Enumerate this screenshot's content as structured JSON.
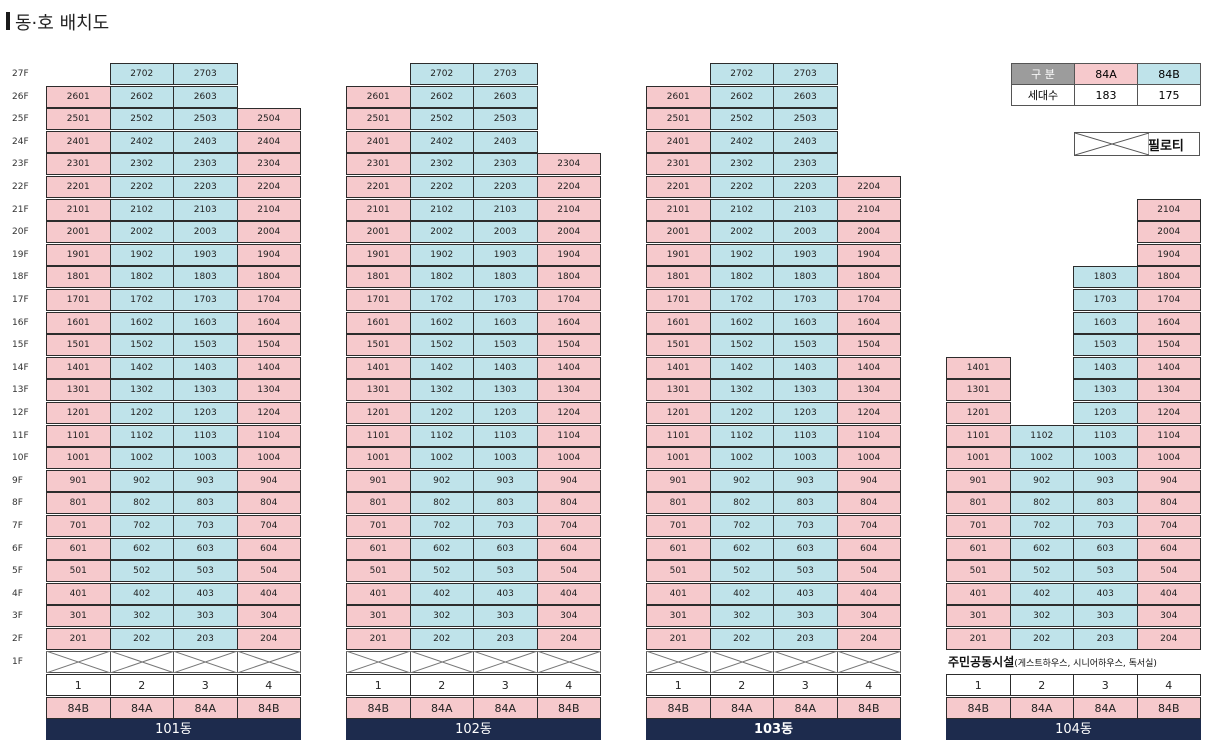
{
  "title": "동·호 배치도",
  "floors": [
    "27F",
    "26F",
    "25F",
    "24F",
    "23F",
    "22F",
    "21F",
    "20F",
    "19F",
    "18F",
    "17F",
    "16F",
    "15F",
    "14F",
    "13F",
    "12F",
    "11F",
    "10F",
    "9F",
    "8F",
    "7F",
    "6F",
    "5F",
    "4F",
    "3F",
    "2F",
    "1F"
  ],
  "legend": {
    "header_label": "구 분",
    "type_a": "84A",
    "type_b": "84B",
    "count_label": "세대수",
    "count_a": "183",
    "count_b": "175",
    "piloti_label": "필로티"
  },
  "buildings": [
    {
      "name": "101동",
      "lines": [
        "1",
        "2",
        "3",
        "4"
      ],
      "types": [
        "84B",
        "84A",
        "84A",
        "84B"
      ],
      "top_floors": [
        26,
        27,
        27,
        25
      ],
      "bottom_floors": [
        2,
        2,
        2,
        2
      ],
      "facility": ""
    },
    {
      "name": "102동",
      "lines": [
        "1",
        "2",
        "3",
        "4"
      ],
      "types": [
        "84B",
        "84A",
        "84A",
        "84B"
      ],
      "top_floors": [
        26,
        27,
        27,
        23
      ],
      "bottom_floors": [
        2,
        2,
        2,
        2
      ],
      "facility": ""
    },
    {
      "name": "103동",
      "lines": [
        "1",
        "2",
        "3",
        "4"
      ],
      "types": [
        "84B",
        "84A",
        "84A",
        "84B"
      ],
      "top_floors": [
        26,
        27,
        27,
        22
      ],
      "bottom_floors": [
        2,
        2,
        2,
        2
      ],
      "facility": ""
    },
    {
      "name": "104동",
      "lines": [
        "1",
        "2",
        "3",
        "4"
      ],
      "types": [
        "84B",
        "84A",
        "84A",
        "84B"
      ],
      "top_floors": [
        14,
        11,
        18,
        21
      ],
      "bottom_floors": [
        2,
        2,
        2,
        2
      ],
      "facility": "주민공동시설",
      "facility_detail": "(게스트하우스, 시니어하우스, 독서실)"
    }
  ]
}
